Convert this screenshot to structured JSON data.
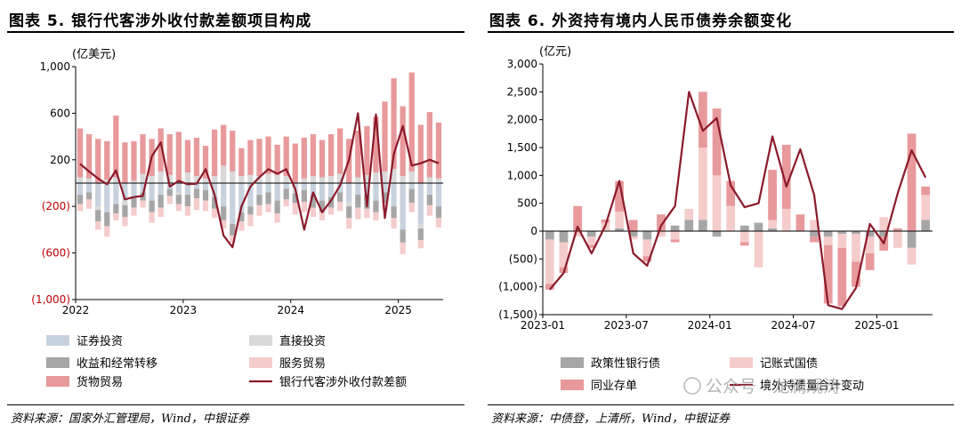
{
  "left": {
    "figure_title": "图表 5. 银行代客涉外收付款差额项目构成",
    "source": "资料来源：国家外汇管理局，Wind，中银证券"
  },
  "right": {
    "figure_title": "图表 6. 外资持有境内人民币债券余额变化",
    "source": "资料来源：中债登，上清所，Wind，中银证券",
    "watermark": "公众号 · 龙澜观涛"
  },
  "chart_data": [
    {
      "type": "bar",
      "title": "图表 5. 银行代客涉外收付款差额项目构成",
      "ylabel": "(亿美元)",
      "ylim": [
        -1000,
        1000
      ],
      "yticks": [
        1000,
        600,
        200,
        -200,
        -600,
        -1000
      ],
      "ytick_labels": [
        "1,000",
        "600",
        "200",
        "(200)",
        "(600)",
        "(1,000)"
      ],
      "xtick_labels": [
        "2022",
        "2023",
        "2024",
        "2025"
      ],
      "months": 41,
      "stacked": true,
      "legend_position": "bottom",
      "series": [
        {
          "name": "证券投资",
          "color": "#c8d2df",
          "values": [
            -100,
            -80,
            -200,
            -250,
            -180,
            -150,
            -120,
            -80,
            -150,
            -100,
            -50,
            -80,
            -100,
            -50,
            -60,
            -120,
            -200,
            -350,
            -250,
            -200,
            -100,
            -80,
            -150,
            -50,
            -40,
            -60,
            -100,
            -150,
            -120,
            -80,
            -160,
            -100,
            -100,
            -150,
            -80,
            -200,
            -400,
            -50,
            -350,
            -100,
            -200
          ]
        },
        {
          "name": "直接投资",
          "color": "#d9d9d9",
          "values": [
            50,
            40,
            -30,
            30,
            50,
            -40,
            20,
            80,
            60,
            100,
            70,
            -20,
            90,
            60,
            40,
            60,
            150,
            100,
            60,
            70,
            60,
            80,
            70,
            60,
            -50,
            40,
            60,
            50,
            60,
            80,
            -40,
            50,
            70,
            90,
            100,
            120,
            60,
            100,
            -40,
            50,
            40
          ]
        },
        {
          "name": "收益和经常转移",
          "color": "#a6a6a6",
          "values": [
            -80,
            -60,
            -100,
            -120,
            -80,
            -100,
            -90,
            -70,
            -100,
            -110,
            -60,
            -80,
            -100,
            -80,
            -90,
            -100,
            -120,
            -100,
            -80,
            -70,
            -90,
            -100,
            -110,
            -90,
            -80,
            -100,
            -110,
            -100,
            -90,
            -80,
            -100,
            -110,
            -120,
            -100,
            -90,
            -100,
            -110,
            -120,
            -100,
            -90,
            -100
          ]
        },
        {
          "name": "服务贸易",
          "color": "#f5cccc",
          "values": [
            -60,
            -80,
            -70,
            -90,
            -60,
            -80,
            -70,
            -60,
            -90,
            -80,
            -70,
            -60,
            -80,
            -100,
            -90,
            -80,
            -70,
            -60,
            -80,
            -100,
            -90,
            -70,
            -80,
            -60,
            -100,
            -90,
            -80,
            -70,
            -60,
            -80,
            -90,
            -100,
            -80,
            -70,
            -60,
            -90,
            -100,
            -80,
            -70,
            -90,
            -80
          ]
        },
        {
          "name": "货物贸易",
          "color": "#e8999c",
          "values": [
            420,
            380,
            380,
            330,
            530,
            350,
            340,
            340,
            320,
            370,
            350,
            440,
            280,
            330,
            280,
            400,
            350,
            350,
            240,
            300,
            320,
            320,
            260,
            340,
            340,
            350,
            360,
            320,
            360,
            390,
            380,
            400,
            420,
            480,
            600,
            780,
            600,
            850,
            500,
            560,
            480
          ]
        }
      ],
      "line": {
        "name": "银行代客涉外收付款差额",
        "color": "#8b1a2b",
        "values": [
          165,
          100,
          40,
          -10,
          110,
          -140,
          -120,
          -110,
          230,
          350,
          -30,
          20,
          -10,
          -5,
          120,
          -100,
          -450,
          -550,
          -200,
          -30,
          50,
          120,
          80,
          120,
          -50,
          -400,
          -80,
          -250,
          -150,
          -20,
          200,
          600,
          -200,
          590,
          -300,
          250,
          490,
          150,
          170,
          200,
          170
        ]
      }
    },
    {
      "type": "bar",
      "title": "图表 6. 外资持有境内人民币债券余额变化",
      "ylabel": "(亿元)",
      "ylim": [
        -1500,
        3000
      ],
      "yticks": [
        3000,
        2500,
        2000,
        1500,
        1000,
        500,
        0,
        -500,
        -1000,
        -1500
      ],
      "ytick_labels": [
        "3,000",
        "2,500",
        "2,000",
        "1,500",
        "1,000",
        "500",
        "0",
        "(500)",
        "(1,000)",
        "(1,500)"
      ],
      "xtick_labels": [
        "2023-01",
        "2023-07",
        "2024-01",
        "2024-07",
        "2025-01"
      ],
      "months": 28,
      "stacked": true,
      "legend_position": "bottom",
      "series": [
        {
          "name": "政策性银行债",
          "color": "#a6a6a6",
          "values": [
            -150,
            -200,
            0,
            -100,
            0,
            50,
            -100,
            -150,
            0,
            100,
            200,
            200,
            -100,
            0,
            100,
            150,
            50,
            0,
            0,
            -100,
            -100,
            -50,
            -50,
            -100,
            -100,
            0,
            -300,
            200
          ]
        },
        {
          "name": "记账式国债",
          "color": "#f5cccc",
          "values": [
            -800,
            -450,
            -100,
            -150,
            150,
            300,
            -50,
            -300,
            -100,
            -150,
            200,
            1300,
            1000,
            450,
            -200,
            -650,
            150,
            400,
            0,
            200,
            -150,
            -250,
            -500,
            -300,
            250,
            -300,
            -300,
            450
          ]
        },
        {
          "name": "同业存单",
          "color": "#e8999c",
          "values": [
            -100,
            -100,
            450,
            -50,
            60,
            550,
            200,
            -100,
            300,
            -50,
            0,
            1000,
            1200,
            450,
            -60,
            0,
            900,
            1150,
            300,
            -100,
            -1050,
            -1050,
            -450,
            -300,
            -250,
            50,
            1750,
            150
          ]
        }
      ],
      "line": {
        "name": "境外持债量合计变动",
        "color": "#8b1a2b",
        "values": [
          -1050,
          -750,
          80,
          -400,
          100,
          900,
          -400,
          -620,
          100,
          450,
          2500,
          1800,
          2030,
          820,
          430,
          500,
          1700,
          800,
          1470,
          650,
          -1330,
          -1400,
          -1020,
          130,
          -220,
          680,
          1450,
          960
        ]
      }
    }
  ]
}
